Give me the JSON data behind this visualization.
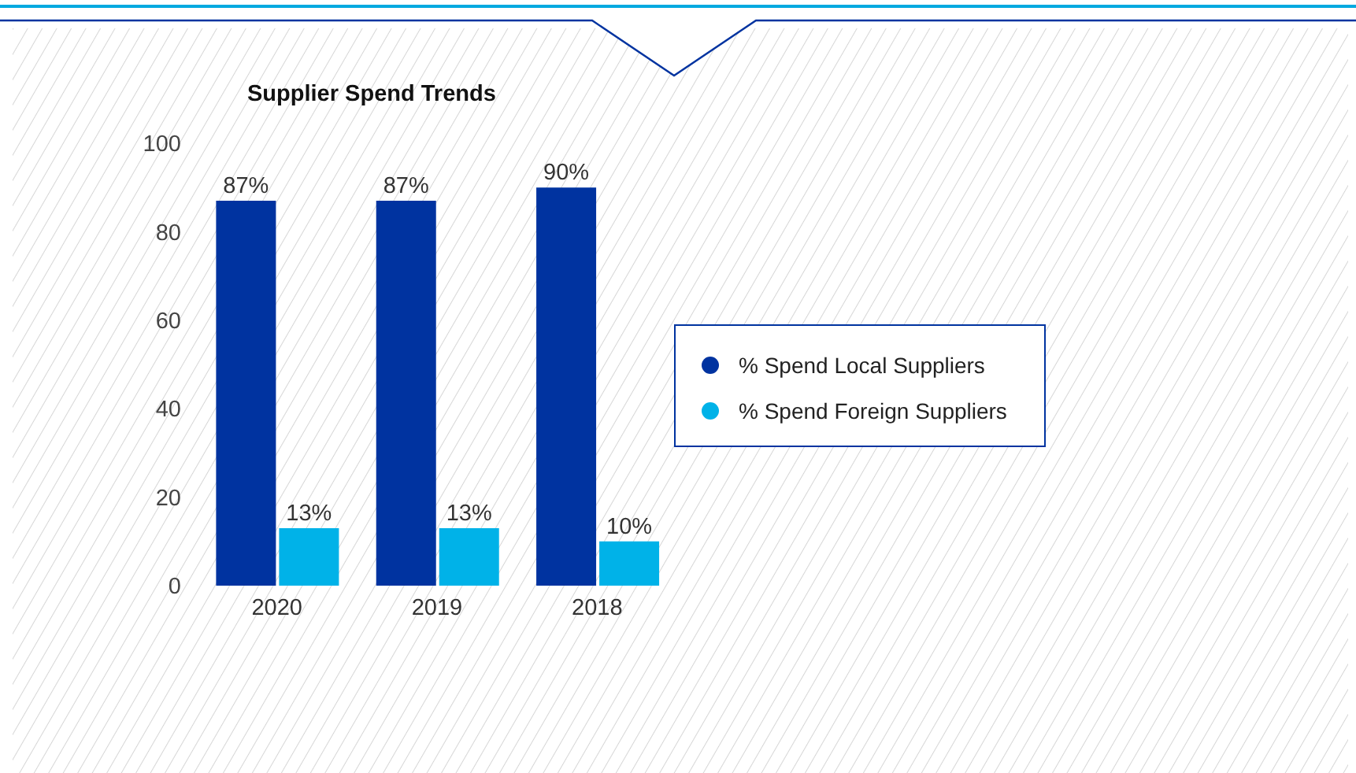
{
  "chart_data": {
    "type": "bar",
    "title": "Supplier Spend Trends",
    "categories": [
      "2020",
      "2019",
      "2018"
    ],
    "series": [
      {
        "name": "% Spend Local Suppliers",
        "color": "#0033a0",
        "values": [
          87,
          87,
          90
        ],
        "value_labels": [
          "87%",
          "87%",
          "90%"
        ]
      },
      {
        "name": "% Spend Foreign Suppliers",
        "color": "#00b2e8",
        "values": [
          13,
          13,
          10
        ],
        "value_labels": [
          "13%",
          "13%",
          "10%"
        ]
      }
    ],
    "ylim": [
      0,
      100
    ],
    "yticks": [
      0,
      20,
      40,
      60,
      80,
      100
    ],
    "legend": "right",
    "marker": "circle"
  }
}
